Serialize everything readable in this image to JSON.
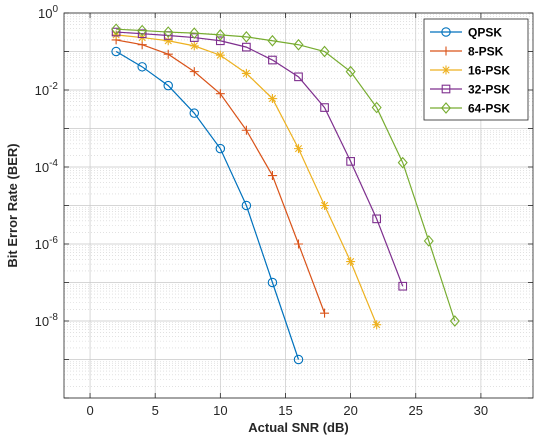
{
  "chart_data": {
    "type": "line",
    "title": "",
    "xlabel": "Actual SNR (dB)",
    "ylabel": "Bit Error Rate (BER)",
    "xlim": [
      -2,
      34
    ],
    "ylim_log10": [
      -10,
      0
    ],
    "y_scale": "log",
    "grid": true,
    "minor_grid": true,
    "legend_placement": "top-right",
    "x_ticks": [
      0,
      5,
      10,
      15,
      20,
      25,
      30
    ],
    "x_tick_labels": [
      "0",
      "5",
      "10",
      "15",
      "20",
      "25",
      "30"
    ],
    "y_ticks_log10": [
      0,
      -2,
      -4,
      -6,
      -8
    ],
    "y_tick_labels": [
      {
        "base": "10",
        "exp": "0"
      },
      {
        "base": "10",
        "exp": "-2"
      },
      {
        "base": "10",
        "exp": "-4"
      },
      {
        "base": "10",
        "exp": "-6"
      },
      {
        "base": "10",
        "exp": "-8"
      }
    ],
    "series": [
      {
        "name": "QPSK",
        "color": "#0072BD",
        "marker": "circle",
        "x": [
          2,
          4,
          6,
          8,
          10,
          12,
          14,
          16
        ],
        "y": [
          0.1,
          0.04,
          0.013,
          0.0025,
          0.0003,
          1e-05,
          1e-07,
          1e-09
        ]
      },
      {
        "name": "8-PSK",
        "color": "#D95319",
        "marker": "plus",
        "x": [
          2,
          4,
          6,
          8,
          10,
          12,
          14,
          16,
          18
        ],
        "y": [
          0.2,
          0.15,
          0.085,
          0.03,
          0.008,
          0.0009,
          6e-05,
          1e-06,
          1.6e-08
        ]
      },
      {
        "name": "16-PSK",
        "color": "#EDB120",
        "marker": "asterisk",
        "x": [
          2,
          4,
          6,
          8,
          10,
          12,
          14,
          16,
          18,
          20,
          22
        ],
        "y": [
          0.27,
          0.23,
          0.19,
          0.14,
          0.08,
          0.027,
          0.006,
          0.0003,
          1e-05,
          3.5e-07,
          8e-09
        ]
      },
      {
        "name": "32-PSK",
        "color": "#7E2F8E",
        "marker": "square",
        "x": [
          2,
          4,
          6,
          8,
          10,
          12,
          14,
          16,
          18,
          20,
          22,
          24
        ],
        "y": [
          0.32,
          0.29,
          0.26,
          0.23,
          0.19,
          0.13,
          0.06,
          0.022,
          0.0035,
          0.00014,
          4.5e-06,
          8e-08
        ]
      },
      {
        "name": "64-PSK",
        "color": "#77AC30",
        "marker": "diamond",
        "x": [
          2,
          4,
          6,
          8,
          10,
          12,
          14,
          16,
          18,
          20,
          22,
          24,
          26,
          28
        ],
        "y": [
          0.38,
          0.35,
          0.32,
          0.3,
          0.27,
          0.24,
          0.19,
          0.15,
          0.1,
          0.03,
          0.0035,
          0.00013,
          1.2e-06,
          1e-08
        ]
      }
    ]
  }
}
